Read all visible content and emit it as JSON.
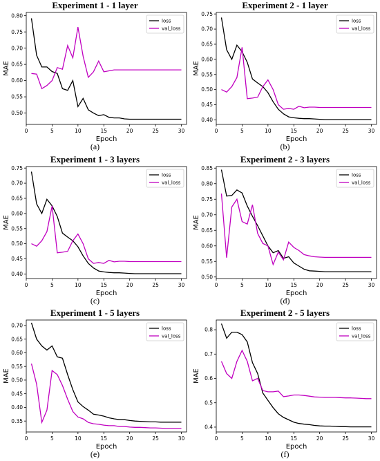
{
  "colors": {
    "loss": "#000000",
    "val_loss": "#c000c0"
  },
  "chart_data": [
    {
      "type": "line",
      "panel_label": "(a)",
      "title": "Experiment 1 - 1 layer",
      "xlabel": "Epoch",
      "ylabel": "MAE",
      "xlim": [
        0,
        31
      ],
      "ylim": [
        0.465,
        0.81
      ],
      "xticks": [
        0,
        5,
        10,
        15,
        20,
        25,
        30
      ],
      "yticks": [
        0.5,
        0.55,
        0.6,
        0.65,
        0.7,
        0.75,
        0.8
      ],
      "ytick_labels": [
        "0.50",
        "0.55",
        "0.60",
        "0.65",
        "0.70",
        "0.75",
        "0.80"
      ],
      "legend_position": "top-right",
      "x": [
        1,
        2,
        3,
        4,
        5,
        6,
        7,
        8,
        9,
        10,
        11,
        12,
        13,
        14,
        15,
        16,
        17,
        18,
        19,
        20,
        21,
        22,
        23,
        24,
        25,
        26,
        27,
        28,
        29,
        30
      ],
      "series": [
        {
          "name": "loss",
          "color": "#000000",
          "values": [
            0.792,
            0.678,
            0.642,
            0.642,
            0.628,
            0.622,
            0.575,
            0.57,
            0.6,
            0.52,
            0.545,
            0.51,
            0.5,
            0.492,
            0.495,
            0.487,
            0.485,
            0.485,
            0.482,
            0.481,
            0.481,
            0.481,
            0.481,
            0.481,
            0.481,
            0.481,
            0.481,
            0.481,
            0.481,
            0.481
          ]
        },
        {
          "name": "val_loss",
          "color": "#c000c0",
          "values": [
            0.622,
            0.62,
            0.575,
            0.585,
            0.6,
            0.64,
            0.635,
            0.708,
            0.67,
            0.765,
            0.675,
            0.61,
            0.627,
            0.66,
            0.627,
            0.63,
            0.633,
            0.633,
            0.633,
            0.633,
            0.633,
            0.633,
            0.633,
            0.633,
            0.633,
            0.633,
            0.633,
            0.633,
            0.633,
            0.633
          ]
        }
      ]
    },
    {
      "type": "line",
      "panel_label": "(b)",
      "title": "Experiment 2 - 1 layer",
      "xlabel": "Epoch",
      "ylabel": "MAE",
      "xlim": [
        0,
        31
      ],
      "ylim": [
        0.385,
        0.755
      ],
      "xticks": [
        0,
        5,
        10,
        15,
        20,
        25,
        30
      ],
      "yticks": [
        0.4,
        0.45,
        0.5,
        0.55,
        0.6,
        0.65,
        0.7,
        0.75
      ],
      "ytick_labels": [
        "0.40",
        "0.45",
        "0.50",
        "0.55",
        "0.60",
        "0.65",
        "0.70",
        "0.75"
      ],
      "legend_position": "top-right",
      "x": [
        1,
        2,
        3,
        4,
        5,
        6,
        7,
        8,
        9,
        10,
        11,
        12,
        13,
        14,
        15,
        16,
        17,
        18,
        19,
        20,
        21,
        22,
        23,
        24,
        25,
        26,
        27,
        28,
        29,
        30
      ],
      "series": [
        {
          "name": "loss",
          "color": "#000000",
          "values": [
            0.738,
            0.632,
            0.6,
            0.647,
            0.625,
            0.59,
            0.535,
            0.522,
            0.51,
            0.49,
            0.46,
            0.435,
            0.42,
            0.41,
            0.407,
            0.405,
            0.404,
            0.404,
            0.403,
            0.402,
            0.401,
            0.401,
            0.401,
            0.401,
            0.401,
            0.401,
            0.401,
            0.401,
            0.401,
            0.401
          ]
        },
        {
          "name": "val_loss",
          "color": "#c000c0",
          "values": [
            0.5,
            0.492,
            0.51,
            0.54,
            0.64,
            0.47,
            0.472,
            0.475,
            0.51,
            0.532,
            0.5,
            0.45,
            0.435,
            0.438,
            0.435,
            0.445,
            0.44,
            0.442,
            0.442,
            0.441,
            0.441,
            0.441,
            0.441,
            0.441,
            0.441,
            0.441,
            0.441,
            0.441,
            0.441,
            0.441
          ]
        }
      ]
    },
    {
      "type": "line",
      "panel_label": "(c)",
      "title": "Experiment 1 - 3 layers",
      "xlabel": "Epoch",
      "ylabel": "MAE",
      "xlim": [
        0,
        31
      ],
      "ylim": [
        0.385,
        0.755
      ],
      "xticks": [
        0,
        5,
        10,
        15,
        20,
        25,
        30
      ],
      "yticks": [
        0.4,
        0.45,
        0.5,
        0.55,
        0.6,
        0.65,
        0.7,
        0.75
      ],
      "ytick_labels": [
        "0.40",
        "0.45",
        "0.50",
        "0.55",
        "0.60",
        "0.65",
        "0.70",
        "0.75"
      ],
      "legend_position": "top-right",
      "x": [
        1,
        2,
        3,
        4,
        5,
        6,
        7,
        8,
        9,
        10,
        11,
        12,
        13,
        14,
        15,
        16,
        17,
        18,
        19,
        20,
        21,
        22,
        23,
        24,
        25,
        26,
        27,
        28,
        29,
        30
      ],
      "series": [
        {
          "name": "loss",
          "color": "#000000",
          "values": [
            0.738,
            0.632,
            0.6,
            0.647,
            0.625,
            0.59,
            0.535,
            0.522,
            0.51,
            0.49,
            0.46,
            0.435,
            0.42,
            0.41,
            0.407,
            0.405,
            0.404,
            0.404,
            0.403,
            0.402,
            0.401,
            0.401,
            0.401,
            0.401,
            0.401,
            0.401,
            0.401,
            0.401,
            0.401,
            0.401
          ]
        },
        {
          "name": "val_loss",
          "color": "#c000c0",
          "values": [
            0.5,
            0.492,
            0.51,
            0.54,
            0.625,
            0.47,
            0.472,
            0.475,
            0.51,
            0.532,
            0.5,
            0.45,
            0.435,
            0.438,
            0.435,
            0.445,
            0.44,
            0.442,
            0.442,
            0.441,
            0.441,
            0.441,
            0.441,
            0.441,
            0.441,
            0.441,
            0.441,
            0.441,
            0.441,
            0.441
          ]
        }
      ]
    },
    {
      "type": "line",
      "panel_label": "(d)",
      "title": "Experiment 2 - 3 layers",
      "xlabel": "Epoch",
      "ylabel": "MAE",
      "xlim": [
        0,
        31
      ],
      "ylim": [
        0.495,
        0.855
      ],
      "xticks": [
        0,
        5,
        10,
        15,
        20,
        25,
        30
      ],
      "yticks": [
        0.5,
        0.55,
        0.6,
        0.65,
        0.7,
        0.75,
        0.8,
        0.85
      ],
      "ytick_labels": [
        "0.50",
        "0.55",
        "0.60",
        "0.65",
        "0.70",
        "0.75",
        "0.80",
        "0.85"
      ],
      "legend_position": "top-right",
      "x": [
        1,
        2,
        3,
        4,
        5,
        6,
        7,
        8,
        9,
        10,
        11,
        12,
        13,
        14,
        15,
        16,
        17,
        18,
        19,
        20,
        21,
        22,
        23,
        24,
        25,
        26,
        27,
        28,
        29,
        30
      ],
      "series": [
        {
          "name": "loss",
          "color": "#000000",
          "values": [
            0.845,
            0.76,
            0.762,
            0.78,
            0.77,
            0.728,
            0.695,
            0.665,
            0.632,
            0.6,
            0.578,
            0.585,
            0.56,
            0.565,
            0.545,
            0.535,
            0.525,
            0.52,
            0.519,
            0.518,
            0.517,
            0.517,
            0.517,
            0.517,
            0.517,
            0.517,
            0.517,
            0.517,
            0.517,
            0.517
          ]
        },
        {
          "name": "val_loss",
          "color": "#c000c0",
          "values": [
            0.768,
            0.562,
            0.725,
            0.75,
            0.678,
            0.67,
            0.732,
            0.64,
            0.608,
            0.6,
            0.54,
            0.58,
            0.555,
            0.612,
            0.595,
            0.585,
            0.572,
            0.568,
            0.565,
            0.564,
            0.563,
            0.563,
            0.563,
            0.563,
            0.563,
            0.563,
            0.563,
            0.563,
            0.563,
            0.563
          ]
        }
      ]
    },
    {
      "type": "line",
      "panel_label": "(e)",
      "title": "Experiment 1 - 5 layers",
      "xlabel": "Epoch",
      "ylabel": "MAE",
      "xlim": [
        0,
        31
      ],
      "ylim": [
        0.31,
        0.72
      ],
      "xticks": [
        0,
        5,
        10,
        15,
        20,
        25,
        30
      ],
      "yticks": [
        0.35,
        0.4,
        0.45,
        0.5,
        0.55,
        0.6,
        0.65,
        0.7
      ],
      "ytick_labels": [
        "0.35",
        "0.40",
        "0.45",
        "0.50",
        "0.55",
        "0.60",
        "0.65",
        "0.70"
      ],
      "legend_position": "top-right",
      "x": [
        1,
        2,
        3,
        4,
        5,
        6,
        7,
        8,
        9,
        10,
        11,
        12,
        13,
        14,
        15,
        16,
        17,
        18,
        19,
        20,
        21,
        22,
        23,
        24,
        25,
        26,
        27,
        28,
        29,
        30
      ],
      "series": [
        {
          "name": "loss",
          "color": "#000000",
          "values": [
            0.71,
            0.65,
            0.625,
            0.61,
            0.625,
            0.585,
            0.58,
            0.52,
            0.465,
            0.42,
            0.403,
            0.39,
            0.375,
            0.372,
            0.368,
            0.362,
            0.358,
            0.355,
            0.355,
            0.352,
            0.35,
            0.349,
            0.348,
            0.347,
            0.347,
            0.346,
            0.346,
            0.346,
            0.346,
            0.346
          ]
        },
        {
          "name": "val_loss",
          "color": "#c000c0",
          "values": [
            0.56,
            0.485,
            0.345,
            0.39,
            0.535,
            0.52,
            0.48,
            0.43,
            0.385,
            0.365,
            0.358,
            0.345,
            0.34,
            0.338,
            0.335,
            0.333,
            0.333,
            0.33,
            0.33,
            0.328,
            0.327,
            0.327,
            0.326,
            0.325,
            0.325,
            0.324,
            0.323,
            0.323,
            0.323,
            0.323
          ]
        }
      ]
    },
    {
      "type": "line",
      "panel_label": "(f)",
      "title": "Experiment 2 - 5 layers",
      "xlabel": "Epoch",
      "ylabel": "MAE",
      "xlim": [
        0,
        31
      ],
      "ylim": [
        0.38,
        0.84
      ],
      "xticks": [
        0,
        5,
        10,
        15,
        20,
        25,
        30
      ],
      "yticks": [
        0.4,
        0.5,
        0.6,
        0.7,
        0.8
      ],
      "ytick_labels": [
        "0.4",
        "0.5",
        "0.6",
        "0.7",
        "0.8"
      ],
      "legend_position": "top-right",
      "x": [
        1,
        2,
        3,
        4,
        5,
        6,
        7,
        8,
        9,
        10,
        11,
        12,
        13,
        14,
        15,
        16,
        17,
        18,
        19,
        20,
        21,
        22,
        23,
        24,
        25,
        26,
        27,
        28,
        29,
        30
      ],
      "series": [
        {
          "name": "loss",
          "color": "#000000",
          "values": [
            0.825,
            0.765,
            0.79,
            0.79,
            0.78,
            0.75,
            0.665,
            0.62,
            0.54,
            0.51,
            0.48,
            0.455,
            0.44,
            0.43,
            0.42,
            0.415,
            0.412,
            0.41,
            0.407,
            0.405,
            0.404,
            0.404,
            0.403,
            0.402,
            0.402,
            0.401,
            0.401,
            0.401,
            0.401,
            0.401
          ]
        },
        {
          "name": "val_loss",
          "color": "#c000c0",
          "values": [
            0.67,
            0.62,
            0.6,
            0.67,
            0.715,
            0.67,
            0.59,
            0.6,
            0.55,
            0.545,
            0.545,
            0.548,
            0.525,
            0.528,
            0.532,
            0.532,
            0.53,
            0.527,
            0.524,
            0.523,
            0.522,
            0.522,
            0.522,
            0.521,
            0.52,
            0.52,
            0.519,
            0.518,
            0.517,
            0.517
          ]
        }
      ]
    }
  ]
}
